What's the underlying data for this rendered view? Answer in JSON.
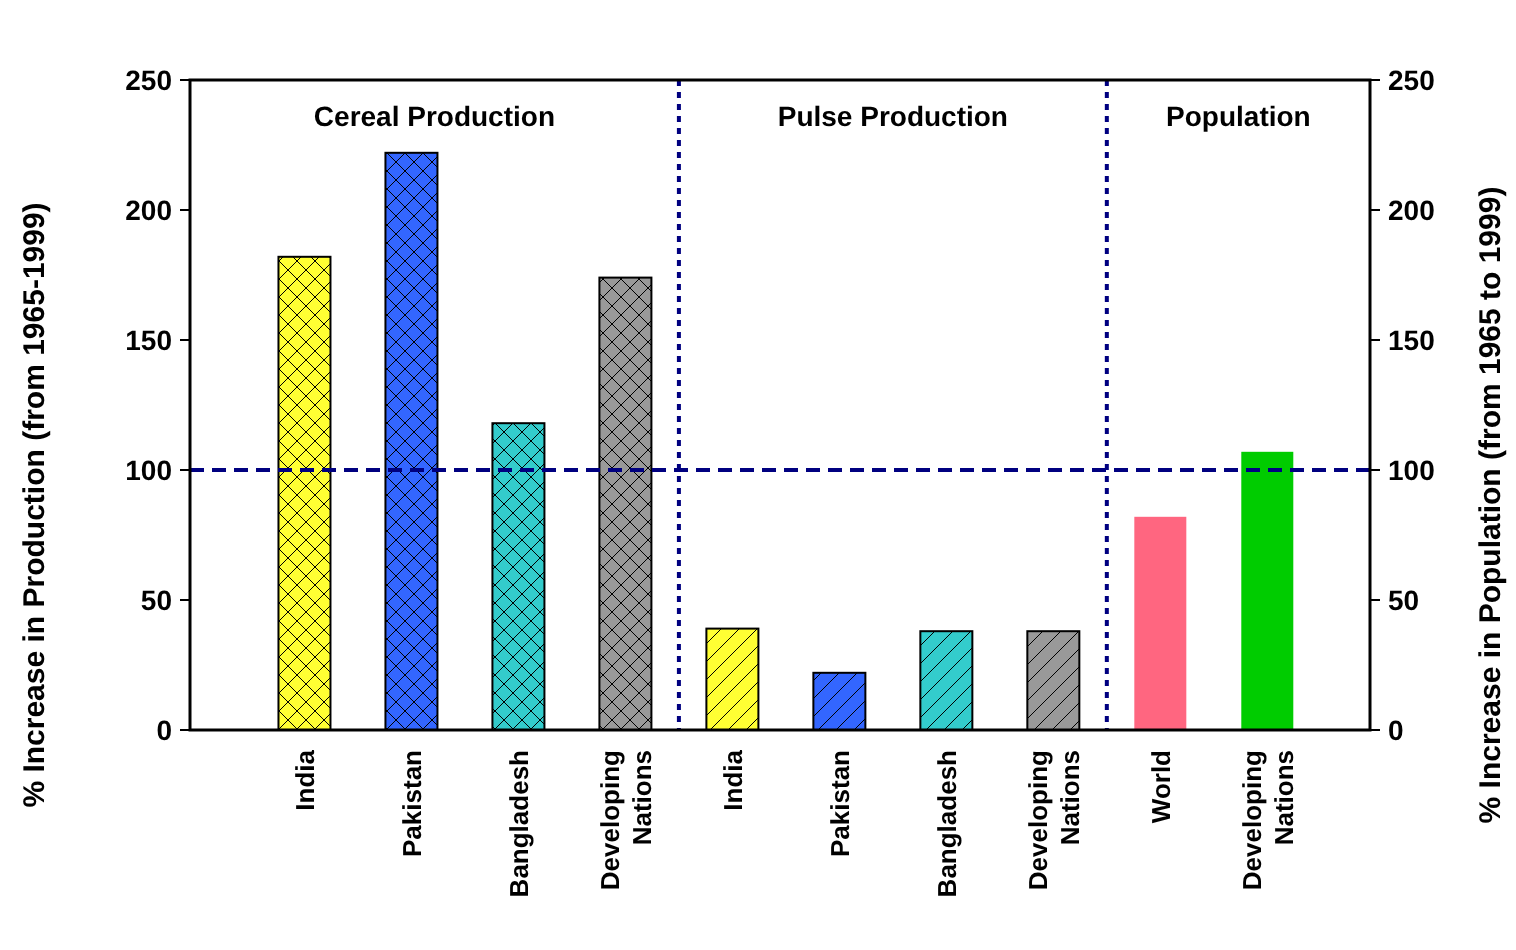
{
  "chart_data": {
    "type": "bar",
    "ylabel": "% Increase in Production (from 1965-1999)",
    "y2label": "% Increase in Population (from 1965 to 1999)",
    "categories": [
      "India",
      "Pakistan",
      "Bangladesh",
      "Developing Nations",
      "India",
      "Pakistan",
      "Bangladesh",
      "Developing Nations",
      "World",
      "Developing Nations"
    ],
    "series": [
      {
        "axis": "y",
        "values": [
          182,
          222,
          118,
          174,
          39,
          22,
          38,
          38,
          null,
          null
        ],
        "colors": [
          "#ffff33",
          "#3366ff",
          "#33cccc",
          "#999999",
          "#ffff33",
          "#3366ff",
          "#33cccc",
          "#999999",
          "#ff6680",
          "#00cc00"
        ]
      },
      {
        "axis": "y2",
        "values": [
          null,
          null,
          null,
          null,
          null,
          null,
          null,
          null,
          82,
          107
        ],
        "colors": [
          "#ffff33",
          "#3366ff",
          "#33cccc",
          "#999999",
          "#ffff33",
          "#3366ff",
          "#33cccc",
          "#999999",
          "#ff6680",
          "#00cc00"
        ]
      }
    ],
    "ylim": [
      0,
      250
    ],
    "yticks": [
      0,
      50,
      100,
      150,
      200,
      250
    ],
    "y2lim": [
      0,
      250
    ],
    "y2ticks": [
      0,
      50,
      100,
      150,
      200,
      250
    ],
    "ref_lines": [
      {
        "axis": "y",
        "value": 100,
        "color": "#000080",
        "line_style": "dashed"
      }
    ],
    "annotations": [
      "Cereal Production",
      "Pulse Production",
      "Population"
    ]
  }
}
